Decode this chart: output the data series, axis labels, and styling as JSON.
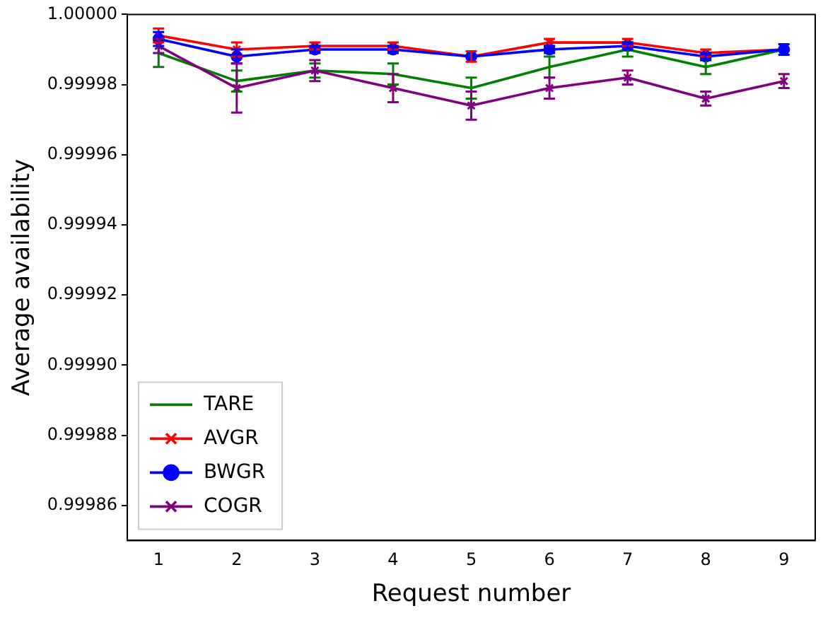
{
  "chart_data": {
    "type": "line",
    "xlabel": "Request number",
    "ylabel": "Average availability",
    "x": [
      1,
      2,
      3,
      4,
      5,
      6,
      7,
      8,
      9
    ],
    "xlim": [
      0.6,
      9.4
    ],
    "xticks": [
      1,
      2,
      3,
      4,
      5,
      6,
      7,
      8,
      9
    ],
    "ylim": [
      0.99985,
      1.0
    ],
    "yticks": [
      {
        "value": 0.99986,
        "label": "0.99986"
      },
      {
        "value": 0.99988,
        "label": "0.99988"
      },
      {
        "value": 0.9999,
        "label": "0.99990"
      },
      {
        "value": 0.99992,
        "label": "0.99992"
      },
      {
        "value": 0.99994,
        "label": "0.99994"
      },
      {
        "value": 0.99996,
        "label": "0.99996"
      },
      {
        "value": 0.99998,
        "label": "0.99998"
      },
      {
        "value": 1.0,
        "label": "1.00000"
      }
    ],
    "grid": false,
    "legend": "bottom left",
    "series": [
      {
        "name": "TARE",
        "color": "#008000",
        "marker": "none",
        "values": [
          0.999989,
          0.999981,
          0.999984,
          0.999983,
          0.999979,
          0.999985,
          0.99999,
          0.999985,
          0.99999
        ],
        "errors": [
          4e-06,
          3e-06,
          2e-06,
          3e-06,
          3e-06,
          3e-06,
          2e-06,
          2e-06,
          null
        ]
      },
      {
        "name": "AVGR",
        "color": "#ff0000",
        "marker": "cross",
        "values": [
          0.999994,
          0.99999,
          0.999991,
          0.999991,
          0.999988,
          0.999992,
          0.999992,
          0.999989,
          0.99999
        ],
        "errors": [
          2e-06,
          2e-06,
          1e-06,
          1e-06,
          1.5e-06,
          1e-06,
          1e-06,
          1e-06,
          null
        ]
      },
      {
        "name": "BWGR",
        "color": "#0000ff",
        "marker": "circle",
        "values": [
          0.999993,
          0.999988,
          0.99999,
          0.99999,
          0.999988,
          0.99999,
          0.999991,
          0.999988,
          0.99999
        ],
        "errors": [
          2e-06,
          2e-06,
          1e-06,
          1e-06,
          null,
          1e-06,
          1e-06,
          1e-06,
          1.5e-06
        ]
      },
      {
        "name": "COGR",
        "color": "#800080",
        "marker": "cross",
        "values": [
          0.999991,
          0.999979,
          0.999984,
          0.999979,
          0.999974,
          0.999979,
          0.999982,
          0.999976,
          0.999981
        ],
        "errors": [
          2e-06,
          7e-06,
          3e-06,
          4e-06,
          4e-06,
          3e-06,
          2e-06,
          2e-06,
          2e-06
        ]
      }
    ]
  }
}
